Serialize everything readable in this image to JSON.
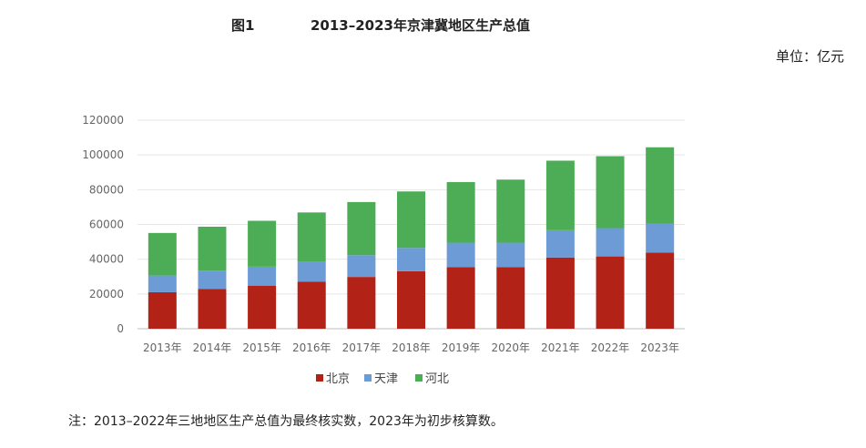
{
  "header": {
    "fig_label": "图1",
    "title": "2013–2023年京津冀地区生产总值",
    "unit": "单位：亿元"
  },
  "note": "注：2013–2022年三地地区生产总值为最终核实数，2023年为初步核算数。",
  "chart_data": {
    "type": "bar",
    "stacked": true,
    "categories": [
      "2013年",
      "2014年",
      "2015年",
      "2016年",
      "2017年",
      "2018年",
      "2019年",
      "2020年",
      "2021年",
      "2022年",
      "2023年"
    ],
    "series": [
      {
        "name": "北京",
        "color": "#b22216",
        "values": [
          21000,
          22800,
          24800,
          27000,
          29800,
          33100,
          35400,
          35400,
          41000,
          41600,
          43800
        ]
      },
      {
        "name": "天津",
        "color": "#6d9bd6",
        "values": [
          9600,
          10600,
          10900,
          11400,
          12500,
          13400,
          14100,
          14100,
          15700,
          16300,
          16700
        ]
      },
      {
        "name": "河北",
        "color": "#4cad56",
        "values": [
          24500,
          25300,
          26400,
          28500,
          30600,
          32500,
          34900,
          36300,
          40000,
          41400,
          43900
        ]
      }
    ],
    "ylim": [
      0,
      120000
    ],
    "yticks": [
      0,
      20000,
      40000,
      60000,
      80000,
      100000,
      120000
    ],
    "grid": true,
    "legend": "bottom"
  }
}
